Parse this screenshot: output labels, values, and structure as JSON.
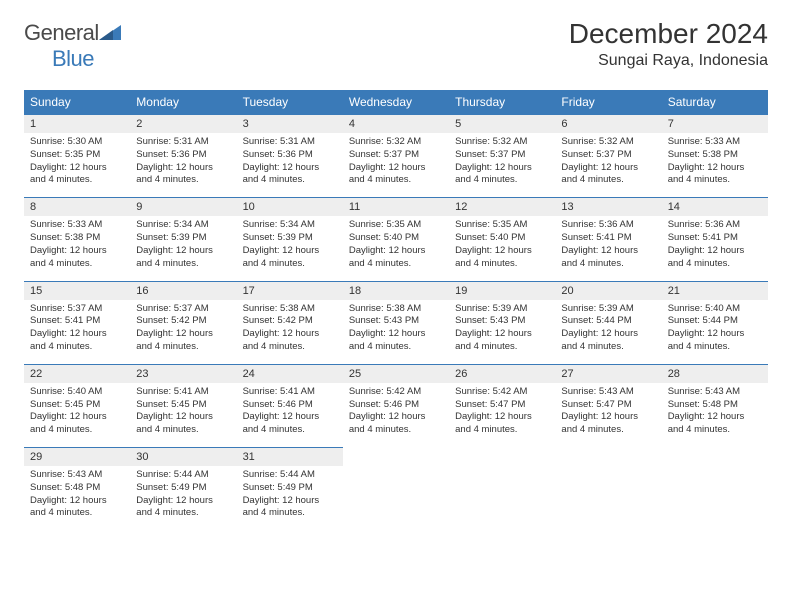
{
  "logo": {
    "general": "General",
    "blue": "Blue"
  },
  "title": "December 2024",
  "location": "Sungai Raya, Indonesia",
  "colors": {
    "header_bg": "#3a7ab8",
    "header_text": "#ffffff",
    "num_row_bg": "#eeeeee",
    "border": "#3a7ab8",
    "body_text": "#333333",
    "logo_gray": "#4a4a4a",
    "logo_blue": "#3a7ab8"
  },
  "fonts": {
    "title_size": 28,
    "location_size": 16,
    "header_size": 12,
    "body_size": 9.5
  },
  "day_names": [
    "Sunday",
    "Monday",
    "Tuesday",
    "Wednesday",
    "Thursday",
    "Friday",
    "Saturday"
  ],
  "weeks": [
    [
      {
        "num": "1",
        "sunrise": "Sunrise: 5:30 AM",
        "sunset": "Sunset: 5:35 PM",
        "day1": "Daylight: 12 hours",
        "day2": "and 4 minutes."
      },
      {
        "num": "2",
        "sunrise": "Sunrise: 5:31 AM",
        "sunset": "Sunset: 5:36 PM",
        "day1": "Daylight: 12 hours",
        "day2": "and 4 minutes."
      },
      {
        "num": "3",
        "sunrise": "Sunrise: 5:31 AM",
        "sunset": "Sunset: 5:36 PM",
        "day1": "Daylight: 12 hours",
        "day2": "and 4 minutes."
      },
      {
        "num": "4",
        "sunrise": "Sunrise: 5:32 AM",
        "sunset": "Sunset: 5:37 PM",
        "day1": "Daylight: 12 hours",
        "day2": "and 4 minutes."
      },
      {
        "num": "5",
        "sunrise": "Sunrise: 5:32 AM",
        "sunset": "Sunset: 5:37 PM",
        "day1": "Daylight: 12 hours",
        "day2": "and 4 minutes."
      },
      {
        "num": "6",
        "sunrise": "Sunrise: 5:32 AM",
        "sunset": "Sunset: 5:37 PM",
        "day1": "Daylight: 12 hours",
        "day2": "and 4 minutes."
      },
      {
        "num": "7",
        "sunrise": "Sunrise: 5:33 AM",
        "sunset": "Sunset: 5:38 PM",
        "day1": "Daylight: 12 hours",
        "day2": "and 4 minutes."
      }
    ],
    [
      {
        "num": "8",
        "sunrise": "Sunrise: 5:33 AM",
        "sunset": "Sunset: 5:38 PM",
        "day1": "Daylight: 12 hours",
        "day2": "and 4 minutes."
      },
      {
        "num": "9",
        "sunrise": "Sunrise: 5:34 AM",
        "sunset": "Sunset: 5:39 PM",
        "day1": "Daylight: 12 hours",
        "day2": "and 4 minutes."
      },
      {
        "num": "10",
        "sunrise": "Sunrise: 5:34 AM",
        "sunset": "Sunset: 5:39 PM",
        "day1": "Daylight: 12 hours",
        "day2": "and 4 minutes."
      },
      {
        "num": "11",
        "sunrise": "Sunrise: 5:35 AM",
        "sunset": "Sunset: 5:40 PM",
        "day1": "Daylight: 12 hours",
        "day2": "and 4 minutes."
      },
      {
        "num": "12",
        "sunrise": "Sunrise: 5:35 AM",
        "sunset": "Sunset: 5:40 PM",
        "day1": "Daylight: 12 hours",
        "day2": "and 4 minutes."
      },
      {
        "num": "13",
        "sunrise": "Sunrise: 5:36 AM",
        "sunset": "Sunset: 5:41 PM",
        "day1": "Daylight: 12 hours",
        "day2": "and 4 minutes."
      },
      {
        "num": "14",
        "sunrise": "Sunrise: 5:36 AM",
        "sunset": "Sunset: 5:41 PM",
        "day1": "Daylight: 12 hours",
        "day2": "and 4 minutes."
      }
    ],
    [
      {
        "num": "15",
        "sunrise": "Sunrise: 5:37 AM",
        "sunset": "Sunset: 5:41 PM",
        "day1": "Daylight: 12 hours",
        "day2": "and 4 minutes."
      },
      {
        "num": "16",
        "sunrise": "Sunrise: 5:37 AM",
        "sunset": "Sunset: 5:42 PM",
        "day1": "Daylight: 12 hours",
        "day2": "and 4 minutes."
      },
      {
        "num": "17",
        "sunrise": "Sunrise: 5:38 AM",
        "sunset": "Sunset: 5:42 PM",
        "day1": "Daylight: 12 hours",
        "day2": "and 4 minutes."
      },
      {
        "num": "18",
        "sunrise": "Sunrise: 5:38 AM",
        "sunset": "Sunset: 5:43 PM",
        "day1": "Daylight: 12 hours",
        "day2": "and 4 minutes."
      },
      {
        "num": "19",
        "sunrise": "Sunrise: 5:39 AM",
        "sunset": "Sunset: 5:43 PM",
        "day1": "Daylight: 12 hours",
        "day2": "and 4 minutes."
      },
      {
        "num": "20",
        "sunrise": "Sunrise: 5:39 AM",
        "sunset": "Sunset: 5:44 PM",
        "day1": "Daylight: 12 hours",
        "day2": "and 4 minutes."
      },
      {
        "num": "21",
        "sunrise": "Sunrise: 5:40 AM",
        "sunset": "Sunset: 5:44 PM",
        "day1": "Daylight: 12 hours",
        "day2": "and 4 minutes."
      }
    ],
    [
      {
        "num": "22",
        "sunrise": "Sunrise: 5:40 AM",
        "sunset": "Sunset: 5:45 PM",
        "day1": "Daylight: 12 hours",
        "day2": "and 4 minutes."
      },
      {
        "num": "23",
        "sunrise": "Sunrise: 5:41 AM",
        "sunset": "Sunset: 5:45 PM",
        "day1": "Daylight: 12 hours",
        "day2": "and 4 minutes."
      },
      {
        "num": "24",
        "sunrise": "Sunrise: 5:41 AM",
        "sunset": "Sunset: 5:46 PM",
        "day1": "Daylight: 12 hours",
        "day2": "and 4 minutes."
      },
      {
        "num": "25",
        "sunrise": "Sunrise: 5:42 AM",
        "sunset": "Sunset: 5:46 PM",
        "day1": "Daylight: 12 hours",
        "day2": "and 4 minutes."
      },
      {
        "num": "26",
        "sunrise": "Sunrise: 5:42 AM",
        "sunset": "Sunset: 5:47 PM",
        "day1": "Daylight: 12 hours",
        "day2": "and 4 minutes."
      },
      {
        "num": "27",
        "sunrise": "Sunrise: 5:43 AM",
        "sunset": "Sunset: 5:47 PM",
        "day1": "Daylight: 12 hours",
        "day2": "and 4 minutes."
      },
      {
        "num": "28",
        "sunrise": "Sunrise: 5:43 AM",
        "sunset": "Sunset: 5:48 PM",
        "day1": "Daylight: 12 hours",
        "day2": "and 4 minutes."
      }
    ],
    [
      {
        "num": "29",
        "sunrise": "Sunrise: 5:43 AM",
        "sunset": "Sunset: 5:48 PM",
        "day1": "Daylight: 12 hours",
        "day2": "and 4 minutes."
      },
      {
        "num": "30",
        "sunrise": "Sunrise: 5:44 AM",
        "sunset": "Sunset: 5:49 PM",
        "day1": "Daylight: 12 hours",
        "day2": "and 4 minutes."
      },
      {
        "num": "31",
        "sunrise": "Sunrise: 5:44 AM",
        "sunset": "Sunset: 5:49 PM",
        "day1": "Daylight: 12 hours",
        "day2": "and 4 minutes."
      },
      null,
      null,
      null,
      null
    ]
  ]
}
